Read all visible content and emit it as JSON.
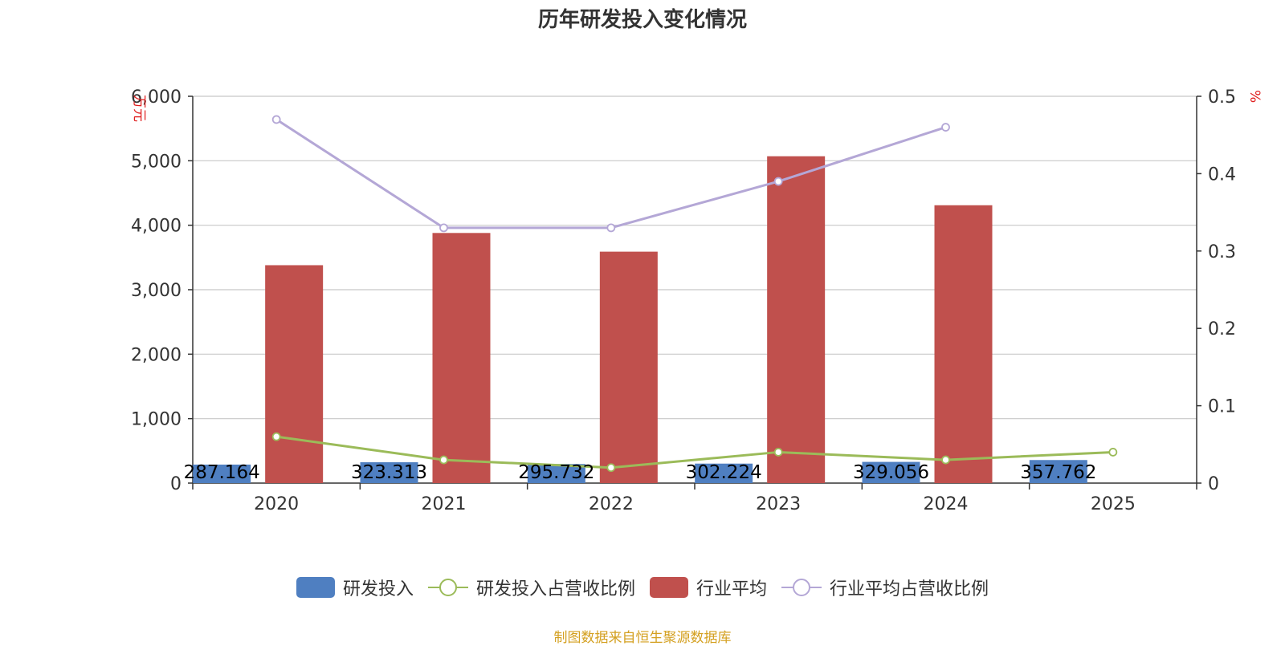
{
  "title": "历年研发投入变化情况",
  "source": "制图数据来自恒生聚源数据库",
  "colors": {
    "rd": "#4f7fc1",
    "rd_ratio": "#9bbb59",
    "industry": "#c0504d",
    "industry_ratio": "#b4a7d6",
    "axis_unit": "#e02020",
    "source": "#d4a020"
  },
  "chart_data": {
    "type": "bar",
    "categories": [
      "2020",
      "2021",
      "2022",
      "2023",
      "2024",
      "2025"
    ],
    "y_left": {
      "label": "万元",
      "ylim": [
        0,
        6000
      ],
      "ticks": [
        "0",
        "1,000",
        "2,000",
        "3,000",
        "4,000",
        "5,000",
        "6,000"
      ]
    },
    "y_right": {
      "label": "%",
      "ylim": [
        0,
        0.5
      ],
      "ticks": [
        "0",
        "0.1",
        "0.2",
        "0.3",
        "0.4",
        "0.5"
      ]
    },
    "series": [
      {
        "name": "研发投入",
        "type": "bar",
        "axis": "left",
        "values": [
          287.164,
          323.313,
          295.732,
          302.224,
          329.056,
          357.762
        ],
        "labels": [
          "287.164",
          "323.313",
          "295.732",
          "302.224",
          "329.056",
          "357.762"
        ]
      },
      {
        "name": "研发投入占营收比例",
        "type": "line",
        "axis": "right",
        "values": [
          0.06,
          0.03,
          0.02,
          0.04,
          0.03,
          0.04
        ]
      },
      {
        "name": "行业平均",
        "type": "bar",
        "axis": "left",
        "values": [
          3380,
          3880,
          3590,
          5070,
          4310,
          null
        ]
      },
      {
        "name": "行业平均占营收比例",
        "type": "line",
        "axis": "right",
        "values": [
          0.47,
          0.33,
          0.33,
          0.39,
          0.46,
          null
        ]
      }
    ],
    "grid": true,
    "legend_position": "bottom"
  },
  "legend": [
    {
      "label": "研发投入",
      "kind": "bar",
      "color": "#4f7fc1"
    },
    {
      "label": "研发投入占营收比例",
      "kind": "line",
      "color": "#9bbb59"
    },
    {
      "label": "行业平均",
      "kind": "bar",
      "color": "#c0504d"
    },
    {
      "label": "行业平均占营收比例",
      "kind": "line",
      "color": "#b4a7d6"
    }
  ]
}
